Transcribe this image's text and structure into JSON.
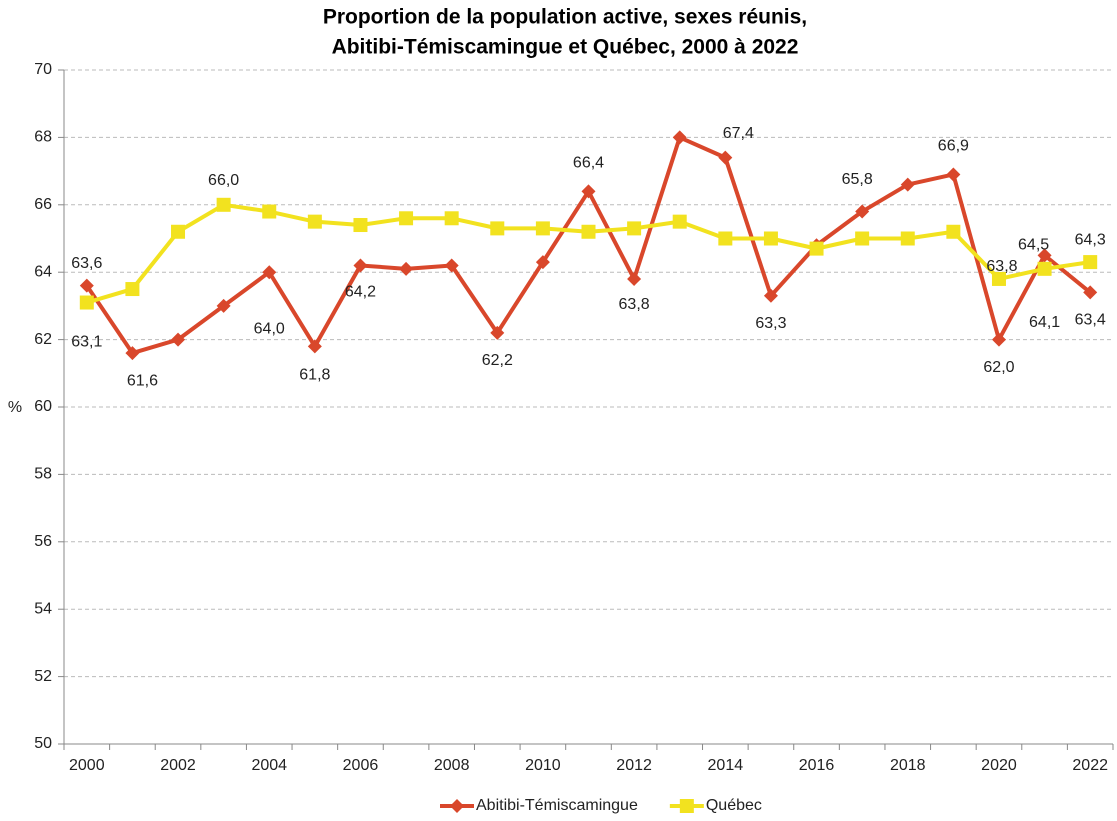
{
  "chart_data": {
    "type": "line",
    "title": [
      "Proportion de la population active, sexes réunis,",
      "Abitibi-Témiscamingue et Québec, 2000 à 2022"
    ],
    "y_label": "%",
    "categories": [
      "2000",
      null,
      "2002",
      null,
      "2004",
      null,
      "2006",
      null,
      "2008",
      null,
      "2010",
      null,
      "2012",
      null,
      "2014",
      null,
      "2016",
      null,
      "2018",
      null,
      "2020",
      null,
      "2022"
    ],
    "ylim": [
      50,
      70
    ],
    "yticks": [
      50,
      52,
      54,
      56,
      58,
      60,
      62,
      64,
      66,
      68,
      70
    ],
    "grid": true,
    "legend": "bottom",
    "series": [
      {
        "name": "Abitibi-Témiscamingue",
        "color": "#d9472b",
        "marker": "diamond",
        "values": [
          63.6,
          61.6,
          62.0,
          63.0,
          64.0,
          61.8,
          64.2,
          64.1,
          64.2,
          62.2,
          64.3,
          66.4,
          63.8,
          68.0,
          67.4,
          63.3,
          64.8,
          65.8,
          66.6,
          66.9,
          62.0,
          64.5,
          63.4
        ],
        "value_labels": [
          "63,6",
          "61,6",
          null,
          null,
          "64,0",
          "61,8",
          "64,2",
          null,
          null,
          "62,2",
          null,
          "66,4",
          "63,8",
          null,
          "67,4",
          "63,3",
          null,
          "65,8",
          null,
          "66,9",
          "62,0",
          "64,5",
          "63,4"
        ]
      },
      {
        "name": "Québec",
        "color": "#f2e21f",
        "marker": "square",
        "values": [
          63.1,
          63.5,
          65.2,
          66.0,
          65.8,
          65.5,
          65.4,
          65.6,
          65.6,
          65.3,
          65.3,
          65.2,
          65.3,
          65.5,
          65.0,
          65.0,
          64.7,
          65.0,
          65.0,
          65.2,
          63.8,
          64.1,
          64.3
        ],
        "value_labels": [
          "63,1",
          null,
          null,
          "66,0",
          null,
          null,
          null,
          null,
          null,
          null,
          null,
          null,
          null,
          null,
          null,
          null,
          null,
          null,
          null,
          null,
          "63,8",
          "64,1",
          "64,3"
        ]
      }
    ]
  }
}
